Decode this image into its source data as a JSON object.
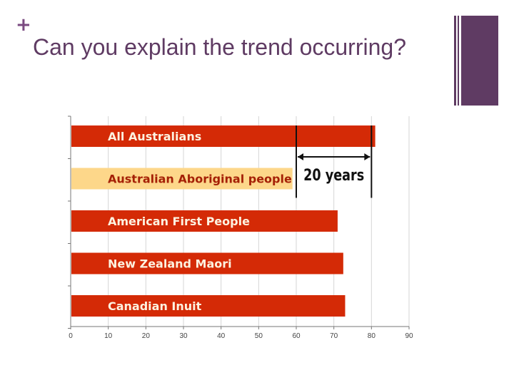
{
  "slide": {
    "plus_glyph": "+",
    "title": "Can you explain the trend occurring?"
  },
  "colors": {
    "accent": "#5f3b63",
    "bar": "#d42a06",
    "bar_highlight": "#fdd78a",
    "grid": "#d5d5d5"
  },
  "chart_data": {
    "type": "bar",
    "orientation": "horizontal",
    "categories": [
      "All Australians",
      "Australian Aboriginal people",
      "American First People",
      "New Zealand Maori",
      "Canadian Inuit"
    ],
    "values": [
      81,
      59,
      71,
      72.5,
      73
    ],
    "highlight_index": 1,
    "xlim": [
      0,
      90
    ],
    "xticks": [
      0,
      10,
      20,
      30,
      40,
      50,
      60,
      70,
      80,
      90
    ],
    "grid": true,
    "annotation": {
      "text": "20 years",
      "from_value": 60,
      "to_value": 80
    }
  }
}
